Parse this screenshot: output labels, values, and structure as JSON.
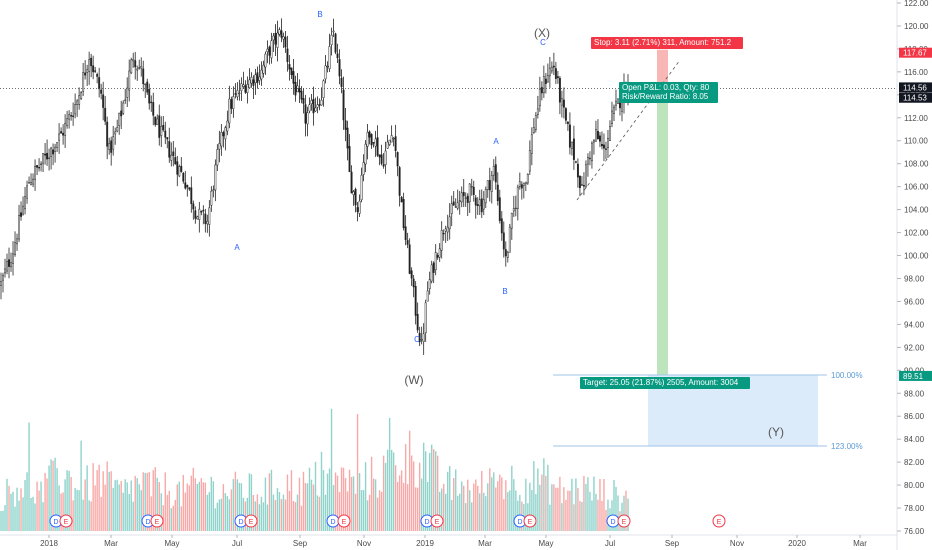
{
  "chart_data": {
    "type": "candlestick",
    "x_ticks": [
      "2018",
      "Mar",
      "May",
      "Jul",
      "Sep",
      "Nov",
      "2019",
      "Mar",
      "May",
      "Jul",
      "Sep",
      "Nov",
      "2020",
      "Mar"
    ],
    "y_ticks": [
      "76.00",
      "78.00",
      "80.00",
      "82.00",
      "84.00",
      "86.00",
      "88.00",
      "90.00",
      "92.00",
      "94.00",
      "96.00",
      "98.00",
      "100.00",
      "102.00",
      "104.00",
      "106.00",
      "108.00",
      "110.00",
      "112.00",
      "114.00",
      "116.00",
      "118.00",
      "120.00",
      "122.00"
    ],
    "ylim": [
      76,
      122.5
    ],
    "price_path": [
      [
        0,
        97.5
      ],
      [
        6,
        100.5
      ],
      [
        14,
        106.5
      ],
      [
        22,
        108.5
      ],
      [
        30,
        110.5
      ],
      [
        38,
        113.5
      ],
      [
        44,
        117.5
      ],
      [
        50,
        114.0
      ],
      [
        54,
        109.0
      ],
      [
        58,
        111.0
      ],
      [
        62,
        114.0
      ],
      [
        66,
        117.5
      ],
      [
        70,
        116.0
      ],
      [
        74,
        113.0
      ],
      [
        80,
        110.5
      ],
      [
        86,
        108.5
      ],
      [
        92,
        106.5
      ],
      [
        98,
        103.5
      ],
      [
        103,
        103.0
      ],
      [
        108,
        108.5
      ],
      [
        114,
        113.0
      ],
      [
        122,
        115.0
      ],
      [
        130,
        116.0
      ],
      [
        134,
        118.0
      ],
      [
        140,
        119.5
      ],
      [
        146,
        115.0
      ],
      [
        152,
        112.0
      ],
      [
        160,
        114.0
      ],
      [
        166,
        119.5
      ],
      [
        170,
        114.0
      ],
      [
        174,
        107.0
      ],
      [
        178,
        104.0
      ],
      [
        182,
        110.0
      ],
      [
        186,
        110.5
      ],
      [
        190,
        108.0
      ],
      [
        196,
        111.0
      ],
      [
        200,
        104.0
      ],
      [
        204,
        99.0
      ],
      [
        208,
        94.0
      ],
      [
        210,
        92.0
      ],
      [
        213,
        97.0
      ],
      [
        217,
        100.0
      ],
      [
        222,
        103.0
      ],
      [
        228,
        104.5
      ],
      [
        234,
        105.5
      ],
      [
        240,
        104.5
      ],
      [
        246,
        107.5
      ],
      [
        249,
        103.5
      ],
      [
        252,
        99.5
      ],
      [
        255,
        103.0
      ],
      [
        259,
        106.5
      ],
      [
        262,
        106.5
      ],
      [
        266,
        111.5
      ],
      [
        270,
        114.5
      ],
      [
        273,
        116.0
      ],
      [
        276,
        116.5
      ],
      [
        280,
        113.0
      ],
      [
        284,
        110.0
      ],
      [
        288,
        107.5
      ],
      [
        290,
        105.5
      ],
      [
        293,
        108.5
      ],
      [
        297,
        110.5
      ],
      [
        301,
        109.0
      ],
      [
        305,
        112.0
      ],
      [
        310,
        114.0
      ],
      [
        313,
        114.8
      ]
    ],
    "volume_path": [
      [
        0,
        0.35
      ],
      [
        10,
        0.5
      ],
      [
        20,
        0.4
      ],
      [
        30,
        0.6
      ],
      [
        40,
        0.45
      ],
      [
        50,
        0.55
      ],
      [
        60,
        0.4
      ],
      [
        70,
        0.5
      ],
      [
        80,
        0.45
      ],
      [
        90,
        0.4
      ],
      [
        100,
        0.5
      ],
      [
        110,
        0.4
      ],
      [
        120,
        0.45
      ],
      [
        130,
        0.4
      ],
      [
        140,
        0.5
      ],
      [
        150,
        0.45
      ],
      [
        160,
        0.55
      ],
      [
        170,
        0.5
      ],
      [
        180,
        0.5
      ],
      [
        190,
        0.6
      ],
      [
        200,
        0.75
      ],
      [
        210,
        0.8
      ],
      [
        220,
        0.5
      ],
      [
        230,
        0.45
      ],
      [
        240,
        0.45
      ],
      [
        250,
        0.55
      ],
      [
        260,
        0.5
      ],
      [
        270,
        0.55
      ],
      [
        280,
        0.4
      ],
      [
        290,
        0.45
      ],
      [
        300,
        0.4
      ],
      [
        313,
        0.35
      ]
    ],
    "current_price": "114.56",
    "close_price": "114.53",
    "stop_price": "117.67",
    "target_price": "89.51",
    "position": {
      "stop_label": "Stop: 3.11 (2.71%) 311, Amount: 751.2",
      "pnl_line1": "Open P&L: 0.03, Qty: 80",
      "pnl_line2": "Risk/Reward Ratio: 8.05",
      "target_label": "Target: 25.05 (21.87%) 2505, Amount: 3004"
    },
    "fib_levels": [
      "100.00%",
      "123.00%"
    ],
    "wave_labels": {
      "minor": [
        "A",
        "B",
        "C",
        "A",
        "B",
        "C"
      ],
      "major": [
        "(W)",
        "(X)",
        "(Y)"
      ]
    },
    "events": [
      {
        "type": "D",
        "color": "#2962ff"
      },
      {
        "type": "E",
        "color": "#f23645"
      },
      {
        "type": "D",
        "color": "#2962ff"
      },
      {
        "type": "E",
        "color": "#f23645"
      },
      {
        "type": "D",
        "color": "#2962ff"
      },
      {
        "type": "E",
        "color": "#f23645"
      },
      {
        "type": "D",
        "color": "#2962ff"
      },
      {
        "type": "E",
        "color": "#f23645"
      },
      {
        "type": "D",
        "color": "#2962ff"
      },
      {
        "type": "E",
        "color": "#f23645"
      },
      {
        "type": "D",
        "color": "#2962ff"
      },
      {
        "type": "E",
        "color": "#f23645"
      },
      {
        "type": "D",
        "color": "#2962ff"
      },
      {
        "type": "E",
        "color": "#f23645"
      },
      {
        "type": "E",
        "color": "#f23645"
      }
    ],
    "colors": {
      "up": "#26a69a",
      "down": "#ef5350",
      "volume_up": "#8fd3cb",
      "volume_down": "#f7a9a7",
      "stop_zone": "#f7a9a7",
      "target_zone": "#b7e1b7",
      "fib_zone": "#dcebfa",
      "stop_badge": "#f23645",
      "profit_badge": "#089981",
      "price_badge": "#131722"
    }
  }
}
